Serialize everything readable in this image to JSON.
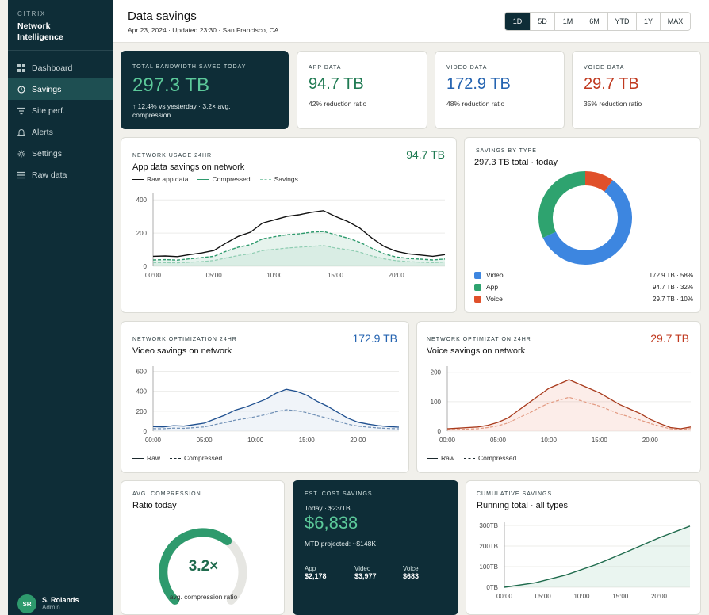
{
  "brand": {
    "small": "CITRIX",
    "line1": "Network",
    "line2": "Intelligence"
  },
  "nav": [
    {
      "label": "Dashboard",
      "icon": "grid-icon"
    },
    {
      "label": "Savings",
      "icon": "clock-icon",
      "active": true
    },
    {
      "label": "Site perf.",
      "icon": "filter-icon"
    },
    {
      "label": "Alerts",
      "icon": "bell-icon"
    },
    {
      "label": "Settings",
      "icon": "gear-icon"
    },
    {
      "label": "Raw data",
      "icon": "list-icon"
    }
  ],
  "user": {
    "initials": "SR",
    "name": "S. Rolands",
    "role": "Admin"
  },
  "header": {
    "title": "Data savings",
    "subtitle": "Apr 23, 2024 · Updated 23:30 · San Francisco, CA"
  },
  "ranges": [
    "1D",
    "5D",
    "1M",
    "6M",
    "YTD",
    "1Y",
    "MAX"
  ],
  "active_range": "1D",
  "kpis": {
    "total": {
      "label": "TOTAL BANDWIDTH SAVED TODAY",
      "value": "297.3 TB",
      "sub1": "↑ 12.4% vs yesterday · 3.2× avg.",
      "sub2": "compression"
    },
    "app": {
      "label": "APP DATA",
      "value": "94.7 TB",
      "sub": "42% reduction ratio"
    },
    "video": {
      "label": "VIDEO DATA",
      "value": "172.9 TB",
      "sub": "48% reduction ratio"
    },
    "voice": {
      "label": "VOICE DATA",
      "value": "29.7 TB",
      "sub": "35% reduction ratio"
    }
  },
  "colors": {
    "dark": "#0e2d37",
    "green": "#2e9a6d",
    "blue": "#2463b0",
    "red": "#c0391f",
    "donut_blue": "#3d86e0",
    "donut_green": "#2ea36f",
    "donut_red": "#e0502a"
  },
  "app_card": {
    "label": "NETWORK USAGE 24HR",
    "title": "App data savings on network",
    "value": "94.7 TB",
    "legend": [
      "Raw app data",
      "Compressed",
      "Savings"
    ]
  },
  "donut_card": {
    "label": "SAVINGS BY TYPE",
    "title": "297.3 TB total · today",
    "rows": [
      {
        "name": "Video",
        "value": "172.9 TB · 58%"
      },
      {
        "name": "App",
        "value": "94.7 TB · 32%"
      },
      {
        "name": "Voice",
        "value": "29.7 TB · 10%"
      }
    ]
  },
  "video_card": {
    "label": "NETWORK OPTIMIZATION 24HR",
    "title": "Video savings on network",
    "value": "172.9 TB",
    "legend": [
      "Raw",
      "Compressed"
    ]
  },
  "voice_card": {
    "label": "NETWORK OPTIMIZATION 24HR",
    "title": "Voice savings on network",
    "value": "29.7 TB",
    "legend": [
      "Raw",
      "Compressed"
    ]
  },
  "compression_card": {
    "label": "AVG. COMPRESSION",
    "title": "Ratio today",
    "value": "3.2×",
    "caption": "avg. compression ratio",
    "fraction": 0.64
  },
  "cost_card": {
    "label": "EST. COST SAVINGS",
    "rate": "Today · $23/TB",
    "value": "$6,838",
    "projected": "MTD projected: ~$148K",
    "breakdown": [
      {
        "label": "App",
        "value": "$2,178"
      },
      {
        "label": "Video",
        "value": "$3,977"
      },
      {
        "label": "Voice",
        "value": "$683"
      }
    ]
  },
  "cumulative_card": {
    "label": "CUMULATIVE SAVINGS",
    "title": "Running total · all types"
  },
  "chart_data": [
    {
      "type": "line",
      "name": "app",
      "x": [
        0,
        1,
        2,
        3,
        4,
        5,
        6,
        7,
        8,
        9,
        10,
        11,
        12,
        13,
        14,
        15,
        16,
        17,
        18,
        19,
        20,
        21,
        22,
        23,
        24
      ],
      "xticks": [
        "00:00",
        "05:00",
        "10:00",
        "15:00",
        "20:00"
      ],
      "xtick_values": [
        0,
        5,
        10,
        15,
        20
      ],
      "yticks": [
        0,
        200,
        400
      ],
      "ylim": [
        0,
        420
      ],
      "xlim": [
        0,
        24
      ],
      "series": [
        {
          "name": "Raw app data",
          "values": [
            60,
            62,
            58,
            70,
            80,
            95,
            140,
            180,
            205,
            260,
            280,
            300,
            310,
            325,
            335,
            300,
            270,
            230,
            170,
            120,
            90,
            75,
            68,
            60,
            70
          ]
        },
        {
          "name": "Compressed",
          "values": [
            38,
            40,
            37,
            45,
            52,
            60,
            90,
            115,
            130,
            165,
            178,
            190,
            195,
            205,
            210,
            190,
            170,
            145,
            108,
            75,
            56,
            47,
            43,
            38,
            44
          ]
        },
        {
          "name": "Savings",
          "values": [
            22,
            22,
            21,
            25,
            28,
            35,
            50,
            65,
            75,
            95,
            102,
            110,
            115,
            120,
            125,
            110,
            100,
            85,
            62,
            45,
            34,
            28,
            25,
            22,
            26
          ]
        }
      ]
    },
    {
      "type": "donut",
      "name": "savings-by-type",
      "categories": [
        "Video",
        "App",
        "Voice"
      ],
      "values": [
        58,
        32,
        10
      ]
    },
    {
      "type": "line",
      "name": "video",
      "x": [
        0,
        1,
        2,
        3,
        4,
        5,
        6,
        7,
        8,
        9,
        10,
        11,
        12,
        13,
        14,
        15,
        16,
        17,
        18,
        19,
        20,
        21,
        22,
        23,
        24
      ],
      "xticks": [
        "00:00",
        "05:00",
        "10:00",
        "15:00",
        "20:00"
      ],
      "xtick_values": [
        0,
        5,
        10,
        15,
        20
      ],
      "yticks": [
        0,
        200,
        400,
        600
      ],
      "ylim": [
        0,
        620
      ],
      "xlim": [
        0,
        24
      ],
      "series": [
        {
          "name": "Raw",
          "values": [
            45,
            42,
            55,
            50,
            65,
            80,
            120,
            160,
            210,
            240,
            280,
            320,
            380,
            420,
            400,
            360,
            300,
            250,
            190,
            130,
            90,
            70,
            55,
            45,
            40
          ]
        },
        {
          "name": "Compressed",
          "values": [
            25,
            24,
            30,
            28,
            35,
            42,
            65,
            85,
            110,
            125,
            145,
            165,
            195,
            215,
            205,
            185,
            155,
            130,
            100,
            70,
            50,
            40,
            32,
            26,
            24
          ]
        }
      ]
    },
    {
      "type": "line",
      "name": "voice",
      "x": [
        0,
        1,
        2,
        3,
        4,
        5,
        6,
        7,
        8,
        9,
        10,
        11,
        12,
        13,
        14,
        15,
        16,
        17,
        18,
        19,
        20,
        21,
        22,
        23,
        24
      ],
      "xticks": [
        "00:00",
        "05:00",
        "10:00",
        "15:00",
        "20:00"
      ],
      "xtick_values": [
        0,
        5,
        10,
        15,
        20
      ],
      "yticks": [
        0,
        100,
        200
      ],
      "ylim": [
        0,
        210
      ],
      "xlim": [
        0,
        24
      ],
      "series": [
        {
          "name": "Raw",
          "values": [
            8,
            10,
            12,
            14,
            20,
            30,
            45,
            70,
            95,
            120,
            145,
            160,
            175,
            160,
            145,
            130,
            110,
            90,
            75,
            60,
            40,
            25,
            12,
            8,
            14
          ]
        },
        {
          "name": "Compressed",
          "values": [
            5,
            6,
            7,
            8,
            12,
            18,
            28,
            45,
            60,
            78,
            95,
            105,
            115,
            105,
            95,
            85,
            72,
            58,
            48,
            38,
            26,
            16,
            8,
            5,
            9
          ]
        }
      ]
    },
    {
      "type": "area",
      "name": "cumulative",
      "x": [
        0,
        4,
        8,
        12,
        16,
        20,
        24
      ],
      "xticks": [
        "00:00",
        "05:00",
        "10:00",
        "15:00",
        "20:00"
      ],
      "xtick_values": [
        0,
        5,
        10,
        15,
        20
      ],
      "yticks": [
        "0TB",
        "100TB",
        "200TB",
        "300TB"
      ],
      "ytick_values": [
        0,
        100,
        200,
        300
      ],
      "ylim": [
        0,
        300
      ],
      "xlim": [
        0,
        24
      ],
      "series": [
        {
          "name": "Cumulative",
          "values": [
            0,
            22,
            60,
            112,
            175,
            240,
            297
          ]
        }
      ]
    }
  ]
}
